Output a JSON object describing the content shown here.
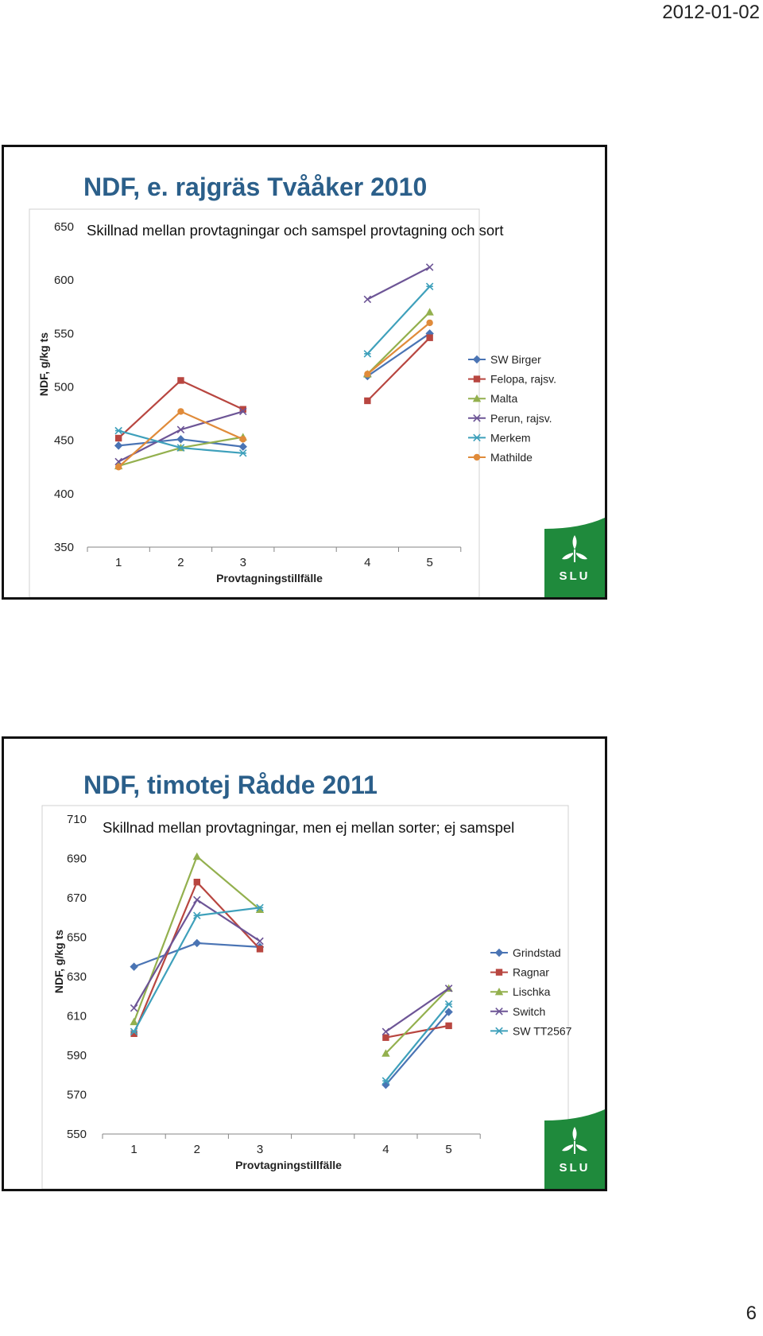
{
  "page": {
    "date": "2012-01-02",
    "number": "6"
  },
  "slides": [
    {
      "title": "NDF, e. rajgräs Tvååker 2010",
      "chart_data": {
        "type": "line",
        "subtitle": "Skillnad mellan provtagningar och samspel  provtagning och sort",
        "xlabel": "Provtagningstillfälle",
        "ylabel": "NDF, g/kg ts",
        "x_categories": [
          "1",
          "2",
          "3",
          "",
          "4",
          "5"
        ],
        "ylim": [
          350,
          650
        ],
        "yticks": [
          350,
          400,
          450,
          500,
          550,
          600,
          650
        ],
        "grid": false,
        "legend_position": "right",
        "series": [
          {
            "name": "SW Birger",
            "color": "#4a74b4",
            "marker": "diamond",
            "values": [
              445,
              451,
              444,
              null,
              510,
              550
            ]
          },
          {
            "name": "Felopa, rajsv.",
            "color": "#b84640",
            "marker": "square",
            "values": [
              452,
              506,
              479,
              null,
              487,
              546
            ]
          },
          {
            "name": "Malta",
            "color": "#93b04e",
            "marker": "triangle",
            "values": [
              426,
              443,
              453,
              null,
              512,
              570
            ]
          },
          {
            "name": "Perun, rajsv.",
            "color": "#6d5596",
            "marker": "x",
            "values": [
              430,
              460,
              477,
              null,
              582,
              612
            ]
          },
          {
            "name": "Merkem",
            "color": "#3ea0bb",
            "marker": "star",
            "values": [
              459,
              443,
              438,
              null,
              531,
              594
            ]
          },
          {
            "name": "Mathilde",
            "color": "#e08b3a",
            "marker": "circle",
            "values": [
              425,
              477,
              451,
              null,
              512,
              560
            ]
          }
        ]
      }
    },
    {
      "title": "NDF, timotej Rådde 2011",
      "chart_data": {
        "type": "line",
        "subtitle": "Skillnad mellan provtagningar, men ej mellan sorter; ej samspel",
        "xlabel": "Provtagningstillfälle",
        "ylabel": "NDF, g/kg ts",
        "x_categories": [
          "1",
          "2",
          "3",
          "",
          "4",
          "5"
        ],
        "ylim": [
          550,
          710
        ],
        "yticks": [
          550,
          570,
          590,
          610,
          630,
          650,
          670,
          690,
          710
        ],
        "grid": false,
        "legend_position": "right",
        "series": [
          {
            "name": "Grindstad",
            "color": "#4a74b4",
            "marker": "diamond",
            "values": [
              635,
              647,
              645,
              null,
              575,
              612
            ]
          },
          {
            "name": "Ragnar",
            "color": "#b84640",
            "marker": "square",
            "values": [
              601,
              678,
              644,
              null,
              599,
              605
            ]
          },
          {
            "name": "Lischka",
            "color": "#93b04e",
            "marker": "triangle",
            "values": [
              607,
              691,
              664,
              null,
              591,
              624
            ]
          },
          {
            "name": "Switch",
            "color": "#6d5596",
            "marker": "x",
            "values": [
              614,
              669,
              648,
              null,
              602,
              624
            ]
          },
          {
            "name": "SW TT2567",
            "color": "#3ea0bb",
            "marker": "star",
            "values": [
              602,
              661,
              665,
              null,
              577,
              616
            ]
          }
        ]
      }
    }
  ]
}
